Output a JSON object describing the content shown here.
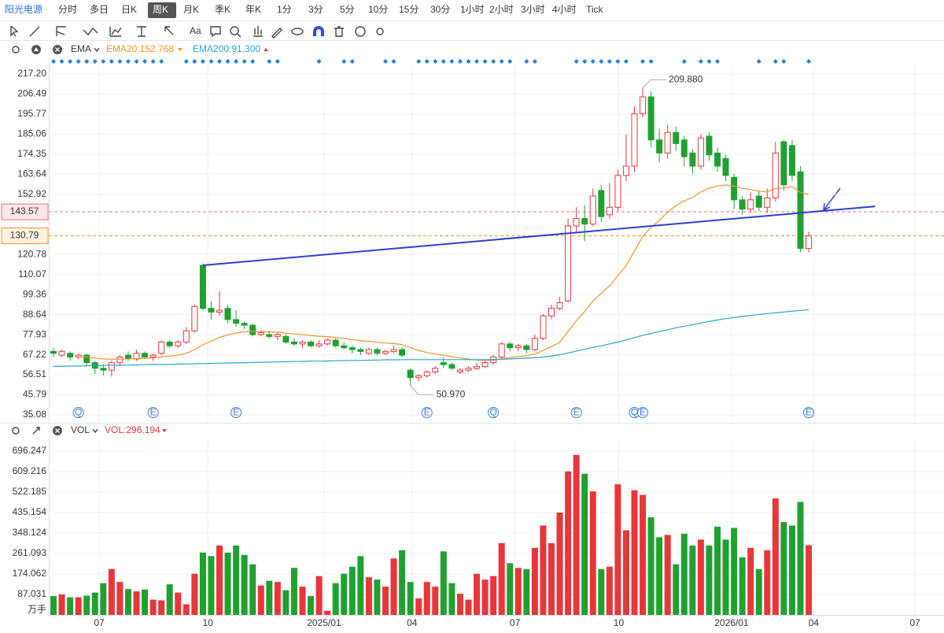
{
  "toolbar": {
    "tabs": [
      "阳光电源",
      "分时",
      "多日",
      "日K",
      "周K",
      "月K",
      "季K",
      "年K",
      "1分",
      "3分",
      "5分",
      "10分",
      "15分",
      "30分",
      "1小时",
      "2小时",
      "3小时",
      "4小时",
      "Tick"
    ],
    "active_tab": 4,
    "text_tool": "Aa"
  },
  "watermark": "moomoo",
  "chart_data": [
    {
      "type": "candlestick",
      "indicator": "EMA",
      "up_color": "#e8363a",
      "down_color": "#21a032",
      "xlim": [
        -0.57,
        107.3
      ],
      "ylim": [
        29.61,
        223.09
      ],
      "yticks": [
        {
          "value": 217.2,
          "label": "217.20"
        },
        206.49,
        195.77,
        185.06,
        174.35,
        163.64,
        152.92,
        120.78,
        110.07,
        99.36,
        88.64,
        77.93,
        67.22,
        56.51,
        45.79,
        35.08
      ],
      "xticks": [
        {
          "value": 5.5,
          "label": "07"
        },
        {
          "value": 18.6,
          "label": "10"
        },
        {
          "value": 32.6,
          "label": "2025/01"
        },
        {
          "value": 43.2,
          "label": "04"
        },
        {
          "value": 55.6,
          "label": "07"
        },
        {
          "value": 68.1,
          "label": "10"
        },
        {
          "value": 81.7,
          "label": "2026/01"
        },
        {
          "value": 91.6,
          "label": "04"
        },
        {
          "value": 103.8,
          "label": "07"
        }
      ],
      "grid": true,
      "open": [
        69,
        67,
        68,
        66,
        67,
        63,
        60,
        59,
        63,
        67,
        65,
        68,
        66,
        68,
        74,
        72,
        74,
        80,
        115,
        92,
        90,
        92,
        86,
        84,
        83,
        78,
        78,
        77,
        77,
        74,
        73,
        74,
        72,
        73,
        75,
        72,
        71,
        70,
        68,
        70,
        68,
        69,
        70,
        59,
        55,
        56,
        58,
        63,
        62,
        58,
        59,
        60,
        61,
        63,
        66,
        73,
        71,
        72,
        70,
        76,
        88,
        92,
        96,
        136,
        140,
        137,
        155,
        142,
        146,
        163,
        168,
        196,
        205,
        182,
        175,
        186,
        182,
        175,
        168,
        184,
        175,
        172,
        162,
        150,
        145,
        152,
        146,
        151,
        181,
        179,
        165,
        124
      ],
      "high": [
        71,
        70,
        69,
        68,
        68,
        64,
        62,
        64,
        67,
        69,
        70,
        69,
        68,
        75,
        75,
        75,
        82,
        94,
        116,
        96,
        101,
        94,
        91,
        85,
        84,
        80,
        80,
        79,
        78,
        76,
        75,
        75,
        75,
        76,
        76,
        74,
        72,
        71,
        71,
        71,
        70,
        72,
        71,
        60,
        57,
        59,
        61,
        66,
        63,
        60,
        61,
        63,
        64,
        67,
        74,
        74,
        73,
        73,
        78,
        89,
        94,
        98,
        140,
        146,
        147,
        156,
        158,
        159,
        166,
        185,
        200,
        209.88,
        208,
        188,
        190,
        189,
        184,
        177,
        185,
        186,
        178,
        174,
        164,
        152,
        154,
        155,
        156,
        181,
        182,
        182,
        168,
        133
      ],
      "low": [
        66,
        66,
        64,
        65,
        61,
        57,
        56,
        55.6,
        61,
        64,
        64,
        65,
        64,
        67,
        71,
        71,
        73,
        79,
        91,
        86,
        88,
        84,
        82,
        81,
        77,
        77,
        76,
        75,
        73,
        72,
        71,
        71,
        71,
        72,
        71,
        70,
        68,
        67,
        67,
        67,
        67,
        68,
        66,
        50.97,
        53,
        55,
        57,
        60,
        59,
        57,
        58,
        59,
        60,
        62,
        65,
        69,
        69,
        68,
        69,
        75,
        86,
        91,
        95,
        132,
        128,
        136,
        138,
        140,
        144,
        160,
        165,
        194,
        178,
        170,
        172,
        176,
        168,
        164,
        166,
        171,
        165,
        160,
        145,
        142,
        143,
        144,
        143,
        149,
        155,
        160,
        122,
        122
      ],
      "close": [
        68,
        69,
        66,
        67,
        63,
        60,
        59,
        63,
        66,
        65,
        68,
        66,
        67,
        74,
        72,
        74,
        80,
        93,
        92,
        90,
        91,
        86,
        84,
        83,
        78,
        79,
        77,
        78,
        74,
        73,
        74,
        72,
        73,
        75,
        72,
        71,
        70,
        69,
        70,
        68,
        69,
        70,
        67,
        55,
        56,
        58,
        60,
        62,
        60,
        59,
        60,
        61,
        63,
        66,
        73,
        71,
        72,
        70,
        76,
        88,
        92,
        95,
        136,
        140,
        137,
        152,
        141,
        146,
        163,
        168,
        196,
        205,
        182,
        175,
        186,
        180,
        173,
        168,
        183,
        174,
        168,
        163,
        150,
        145,
        150,
        146,
        151,
        175,
        158,
        163,
        124,
        130.79
      ],
      "series": [
        {
          "name": "EMA20:152.768",
          "color": "#f0942a",
          "values": [
            null,
            null,
            null,
            66,
            66,
            65.5,
            65,
            64.8,
            64.9,
            65,
            65.2,
            65.3,
            65.5,
            66,
            66.5,
            67,
            68,
            70,
            72.5,
            74.5,
            76.5,
            77.8,
            78.8,
            79.5,
            79.6,
            79.6,
            79.4,
            79.3,
            78.8,
            78.3,
            77.9,
            77.5,
            77.1,
            76.9,
            76.4,
            75.9,
            75.3,
            74.8,
            74.4,
            73.9,
            73.5,
            73.2,
            72.7,
            71,
            69.5,
            68.4,
            67.6,
            66.9,
            66.2,
            65.5,
            64.9,
            64.4,
            64.2,
            64.3,
            65.1,
            65.7,
            66.3,
            66.7,
            67.6,
            69.5,
            71.6,
            73.8,
            79.7,
            85.4,
            90.3,
            96,
            100,
            104,
            109.4,
            114.8,
            122.6,
            130.4,
            135.2,
            139,
            143.4,
            146.9,
            149.4,
            151.2,
            154.2,
            156.2,
            157.4,
            158,
            157.3,
            156.1,
            155.5,
            154.6,
            154.2,
            156.1,
            156.3,
            157,
            153.9,
            152.768
          ]
        },
        {
          "name": "EMA200:91.300",
          "color": "#2aa3c9",
          "values": [
            61.0,
            61.1,
            61.2,
            61.2,
            61.3,
            61.4,
            61.5,
            61.6,
            61.6,
            61.7,
            61.8,
            61.9,
            62.0,
            62.0,
            62.1,
            62.2,
            62.3,
            62.4,
            62.5,
            62.6,
            62.7,
            62.8,
            62.9,
            63.0,
            63.1,
            63.2,
            63.3,
            63.4,
            63.5,
            63.6,
            63.7,
            63.8,
            63.8,
            63.9,
            64.0,
            64.1,
            64.2,
            64.2,
            64.3,
            64.4,
            64.5,
            64.5,
            64.6,
            64.6,
            64.6,
            64.6,
            64.6,
            64.6,
            64.6,
            64.6,
            64.6,
            64.6,
            64.6,
            64.7,
            64.8,
            65.0,
            65.2,
            65.4,
            65.6,
            66.0,
            66.6,
            67.2,
            68.2,
            69.2,
            70.1,
            71.2,
            72.0,
            73.0,
            74.0,
            75.1,
            76.4,
            77.6,
            78.6,
            79.6,
            80.6,
            81.6,
            82.5,
            83.3,
            84.1,
            85.0,
            85.8,
            86.5,
            87.1,
            87.7,
            88.2,
            88.7,
            89.2,
            89.6,
            90.0,
            90.5,
            90.9,
            91.3
          ]
        }
      ],
      "trendline": {
        "color": "#2c3fd1",
        "x": [
          18,
          99
        ],
        "values": [
          115,
          146.5
        ]
      },
      "price_lines": [
        {
          "value": 143.57,
          "color": "#e6717c",
          "fill": "#fde7ea"
        },
        {
          "value": 130.79,
          "color": "#f0942a",
          "fill": "#fff1e1"
        }
      ],
      "annotations": [
        {
          "index": 71,
          "value": 209.88,
          "label": "209.880"
        },
        {
          "index": 43,
          "value": 50.97,
          "label": "50.970"
        }
      ],
      "events": [
        {
          "index": 3,
          "label": "Q"
        },
        {
          "index": 12,
          "label": "E"
        },
        {
          "index": 22,
          "label": "E"
        },
        {
          "index": 45,
          "label": "E"
        },
        {
          "index": 53,
          "label": "Q"
        },
        {
          "index": 63,
          "label": "E"
        },
        {
          "index": 70,
          "label": "Q"
        },
        {
          "index": 71,
          "label": "E"
        },
        {
          "index": 91,
          "label": "E"
        }
      ],
      "signals": {
        "color": "#1e7fd8",
        "indices": [
          0,
          1,
          2,
          3,
          4,
          5,
          6,
          7,
          8,
          9,
          10,
          11,
          12,
          13,
          16,
          17,
          18,
          19,
          20,
          21,
          22,
          23,
          24,
          26,
          27,
          32,
          35,
          36,
          40,
          41,
          44,
          45,
          46,
          47,
          48,
          49,
          50,
          51,
          52,
          53,
          54,
          55,
          57,
          58,
          63,
          64,
          65,
          66,
          67,
          68,
          69,
          71,
          72,
          76,
          78,
          79,
          80,
          85,
          87,
          88,
          91
        ]
      }
    },
    {
      "type": "bar",
      "indicator": "VOL",
      "unit": "万手",
      "xlim": [
        -0.57,
        107.3
      ],
      "ylim": [
        0,
        739.6
      ],
      "yticks": [
        696.247,
        609.216,
        522.185,
        435.154,
        348.124,
        261.093,
        174.062,
        87.031
      ],
      "grid": true,
      "series": [
        {
          "name": "VOL:296.194",
          "color": "#e8363a",
          "values": [
            80,
            87,
            75,
            75,
            82,
            95,
            135,
            195,
            140,
            110,
            100,
            108,
            65,
            62,
            130,
            95,
            45,
            175,
            265,
            250,
            295,
            265,
            295,
            255,
            215,
            125,
            145,
            140,
            105,
            200,
            120,
            80,
            165,
            18,
            135,
            175,
            205,
            250,
            160,
            150,
            120,
            240,
            275,
            140,
            70,
            140,
            120,
            270,
            135,
            90,
            65,
            175,
            150,
            165,
            305,
            220,
            200,
            195,
            285,
            380,
            305,
            435,
            610,
            680,
            600,
            525,
            195,
            205,
            555,
            360,
            530,
            510,
            415,
            330,
            340,
            215,
            345,
            295,
            320,
            295,
            375,
            320,
            370,
            245,
            285,
            195,
            275,
            495,
            395,
            380,
            480,
            296.194
          ]
        }
      ]
    }
  ]
}
